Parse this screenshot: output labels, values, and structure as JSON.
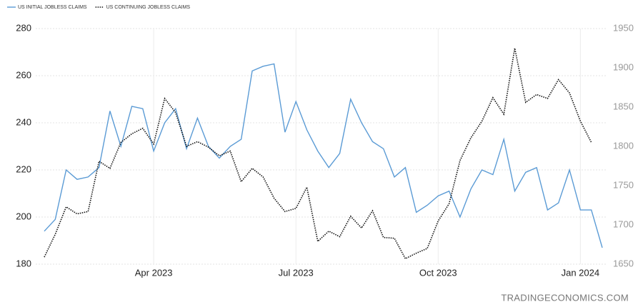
{
  "chart_data": {
    "type": "line",
    "legend": "top-left",
    "grid": true,
    "watermark": "TRADINGECONOMICS.COM",
    "categories": [
      null,
      null,
      null,
      null,
      null,
      null,
      null,
      null,
      null,
      null,
      "Apr 2023",
      null,
      null,
      null,
      null,
      null,
      null,
      null,
      null,
      null,
      null,
      null,
      null,
      "Jul 2023",
      null,
      null,
      null,
      null,
      null,
      null,
      null,
      null,
      null,
      null,
      null,
      null,
      "Oct 2023",
      null,
      null,
      null,
      null,
      null,
      null,
      null,
      null,
      null,
      null,
      null,
      null,
      "Jan 2024",
      null,
      null
    ],
    "ylim": [
      180,
      280
    ],
    "yticks": [
      180,
      200,
      220,
      240,
      260,
      280
    ],
    "y2lim": [
      1650,
      1950
    ],
    "y2ticks": [
      1650,
      1700,
      1750,
      1800,
      1850,
      1900,
      1950
    ],
    "series": [
      {
        "name": "US INITIAL JOBLESS CLAIMS",
        "color": "#5b9bd5",
        "style": "solid",
        "values": [
          194,
          199,
          220,
          216,
          217,
          221,
          245,
          230,
          247,
          246,
          228,
          240,
          246,
          229,
          242,
          230,
          225,
          230,
          233,
          262,
          264,
          265,
          236,
          249,
          237,
          228,
          221,
          227,
          250,
          240,
          232,
          229,
          217,
          221,
          202,
          205,
          209,
          211,
          200,
          212,
          220,
          218,
          233,
          211,
          219,
          221,
          203,
          206,
          220,
          203,
          203,
          187
        ]
      },
      {
        "name": "US CONTINUING JOBLESS CLAIMS",
        "color": "#111111",
        "style": "dotted",
        "axis": "y2",
        "values": [
          1659,
          1688,
          1723,
          1714,
          1717,
          1781,
          1772,
          1805,
          1816,
          1823,
          1803,
          1861,
          1843,
          1800,
          1806,
          1799,
          1788,
          1794,
          1755,
          1772,
          1761,
          1734,
          1717,
          1721,
          1748,
          1679,
          1692,
          1685,
          1711,
          1696,
          1718,
          1684,
          1683,
          1657,
          1664,
          1670,
          1705,
          1727,
          1782,
          1811,
          1832,
          1862,
          1841,
          1925,
          1856,
          1866,
          1861,
          1885,
          1868,
          1832,
          1805,
          null
        ]
      }
    ]
  }
}
